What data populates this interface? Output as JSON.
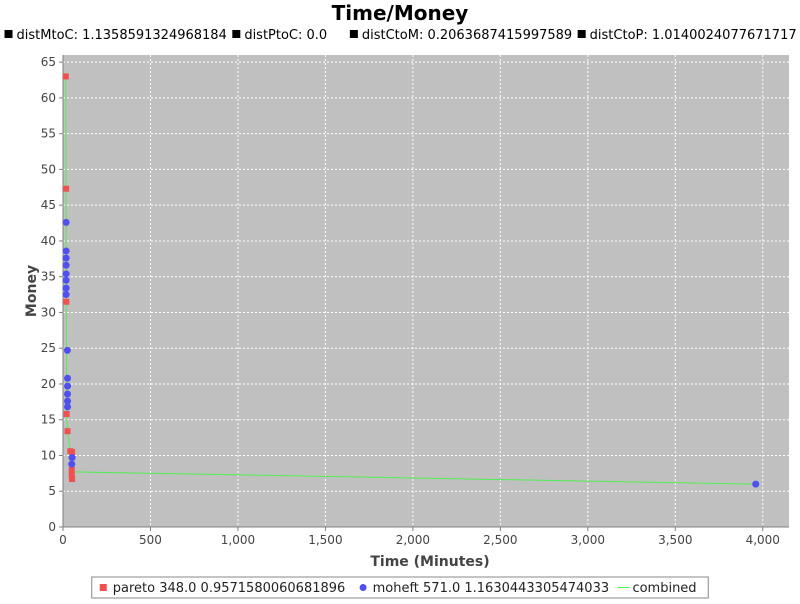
{
  "chart_data": {
    "type": "scatter",
    "title": "Time/Money",
    "subtitle_items": [
      "distMtoC: 1.1358591324968184",
      "distPtoC: 0.0",
      "distCtoM: 0.2063687415997589",
      "distCtoP: 1.0140024077671717"
    ],
    "xlabel": "Time (Minutes)",
    "ylabel": "Money",
    "xlim": [
      0,
      4150
    ],
    "ylim": [
      0,
      66
    ],
    "x_ticks": [
      "0",
      "500",
      "1,000",
      "1,500",
      "2,000",
      "2,500",
      "3,000",
      "3,500",
      "4,000"
    ],
    "x_tick_values": [
      0,
      500,
      1000,
      1500,
      2000,
      2500,
      3000,
      3500,
      4000
    ],
    "y_ticks": [
      "0",
      "5",
      "10",
      "15",
      "20",
      "25",
      "30",
      "35",
      "40",
      "45",
      "50",
      "55",
      "60",
      "65"
    ],
    "y_tick_values": [
      0,
      5,
      10,
      15,
      20,
      25,
      30,
      35,
      40,
      45,
      50,
      55,
      60,
      65
    ],
    "grid": true,
    "plot_background": "#c0c0c0",
    "legend_position": "bottom",
    "series": [
      {
        "name": "pareto 348.0 0.9571580060681896",
        "marker": "square",
        "color": "#f05050",
        "points": [
          [
            16,
            63
          ],
          [
            18,
            47.3
          ],
          [
            19,
            31.5
          ],
          [
            21,
            15.8
          ],
          [
            26,
            13.4
          ],
          [
            42,
            10.6
          ],
          [
            52,
            10.5
          ],
          [
            50,
            8.0
          ],
          [
            52,
            6.7
          ],
          [
            50,
            7.2
          ]
        ]
      },
      {
        "name": "moheft 571.0 1.1630443305474033",
        "marker": "circle",
        "color": "#5050f0",
        "points": [
          [
            18,
            42.6
          ],
          [
            18,
            38.6
          ],
          [
            18,
            37.6
          ],
          [
            18,
            36.6
          ],
          [
            18,
            35.4
          ],
          [
            18,
            34.5
          ],
          [
            18,
            33.4
          ],
          [
            18,
            32.5
          ],
          [
            25,
            24.7
          ],
          [
            26,
            20.8
          ],
          [
            26,
            19.7
          ],
          [
            26,
            18.6
          ],
          [
            26,
            17.6
          ],
          [
            26,
            16.8
          ],
          [
            52,
            9.7
          ],
          [
            50,
            8.8
          ],
          [
            3960,
            6.0
          ]
        ]
      },
      {
        "name": "combined",
        "marker": "line",
        "color": "#50f050",
        "points": [
          [
            16,
            63
          ],
          [
            18,
            47.3
          ],
          [
            19,
            31.5
          ],
          [
            21,
            15.8
          ],
          [
            26,
            13.4
          ],
          [
            42,
            10.6
          ],
          [
            50,
            8.0
          ],
          [
            52,
            7.7
          ],
          [
            3960,
            6.0
          ]
        ]
      }
    ]
  }
}
